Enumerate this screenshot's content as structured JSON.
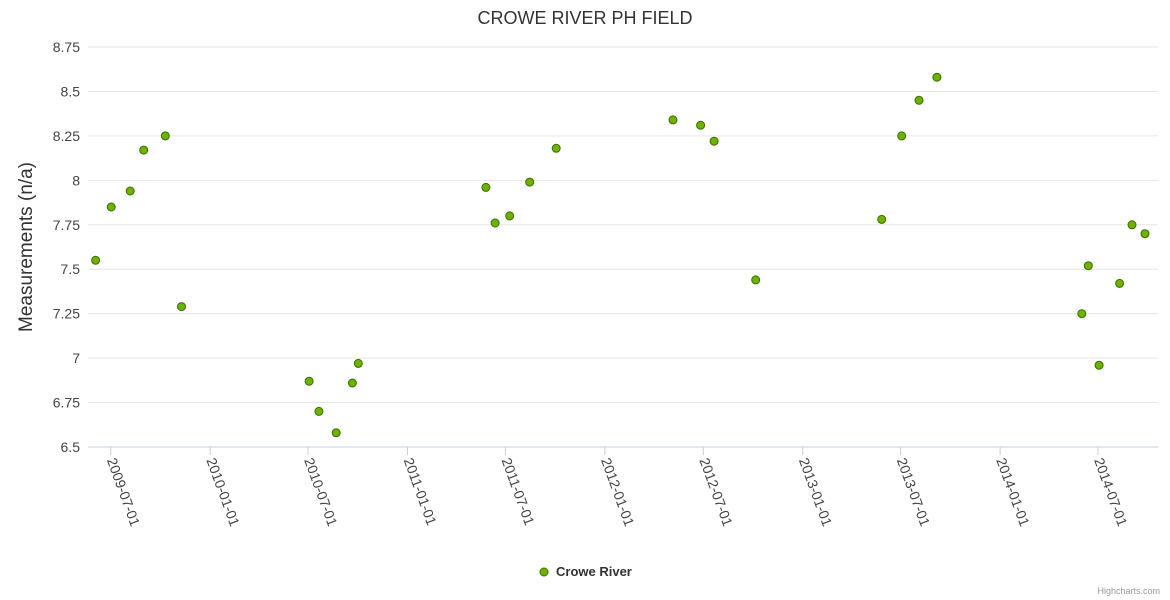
{
  "chart_data": {
    "type": "scatter",
    "title": "CROWE RIVER PH FIELD",
    "xlabel": "",
    "ylabel": "Measurements (n/a)",
    "ylim": [
      6.5,
      8.75
    ],
    "yticks": [
      "6.5",
      "6.75",
      "7",
      "7.25",
      "7.5",
      "7.75",
      "8",
      "8.25",
      "8.5",
      "8.75"
    ],
    "xlim": [
      "2009-05-20",
      "2014-10-20"
    ],
    "xticks": [
      "2009-07-01",
      "2010-01-01",
      "2010-07-01",
      "2011-01-01",
      "2011-07-01",
      "2012-01-01",
      "2012-07-01",
      "2013-01-01",
      "2013-07-01",
      "2014-01-01",
      "2014-07-01"
    ],
    "series": [
      {
        "name": "Crowe River",
        "color": "#6eb200",
        "points": [
          {
            "x": "2009-06-03",
            "y": 7.55
          },
          {
            "x": "2009-07-02",
            "y": 7.85
          },
          {
            "x": "2009-08-06",
            "y": 7.94
          },
          {
            "x": "2009-08-31",
            "y": 8.17
          },
          {
            "x": "2009-10-10",
            "y": 8.25
          },
          {
            "x": "2009-11-09",
            "y": 7.29
          },
          {
            "x": "2010-07-03",
            "y": 6.87
          },
          {
            "x": "2010-07-21",
            "y": 6.7
          },
          {
            "x": "2010-08-22",
            "y": 6.58
          },
          {
            "x": "2010-09-21",
            "y": 6.86
          },
          {
            "x": "2010-10-02",
            "y": 6.97
          },
          {
            "x": "2011-05-26",
            "y": 7.96
          },
          {
            "x": "2011-06-12",
            "y": 7.76
          },
          {
            "x": "2011-07-09",
            "y": 7.8
          },
          {
            "x": "2011-08-15",
            "y": 7.99
          },
          {
            "x": "2011-10-03",
            "y": 8.18
          },
          {
            "x": "2012-05-06",
            "y": 8.34
          },
          {
            "x": "2012-06-26",
            "y": 8.31
          },
          {
            "x": "2012-07-21",
            "y": 8.22
          },
          {
            "x": "2012-10-06",
            "y": 7.44
          },
          {
            "x": "2013-05-27",
            "y": 7.78
          },
          {
            "x": "2013-07-03",
            "y": 8.25
          },
          {
            "x": "2013-08-04",
            "y": 8.45
          },
          {
            "x": "2013-09-06",
            "y": 8.58
          },
          {
            "x": "2014-06-01",
            "y": 7.25
          },
          {
            "x": "2014-06-13",
            "y": 7.52
          },
          {
            "x": "2014-07-03",
            "y": 6.96
          },
          {
            "x": "2014-08-10",
            "y": 7.42
          },
          {
            "x": "2014-09-02",
            "y": 7.75
          },
          {
            "x": "2014-09-26",
            "y": 7.7
          }
        ]
      }
    ],
    "legend": {
      "label": "Crowe River",
      "position": "bottom-center"
    },
    "credits": "Highcharts.com"
  }
}
